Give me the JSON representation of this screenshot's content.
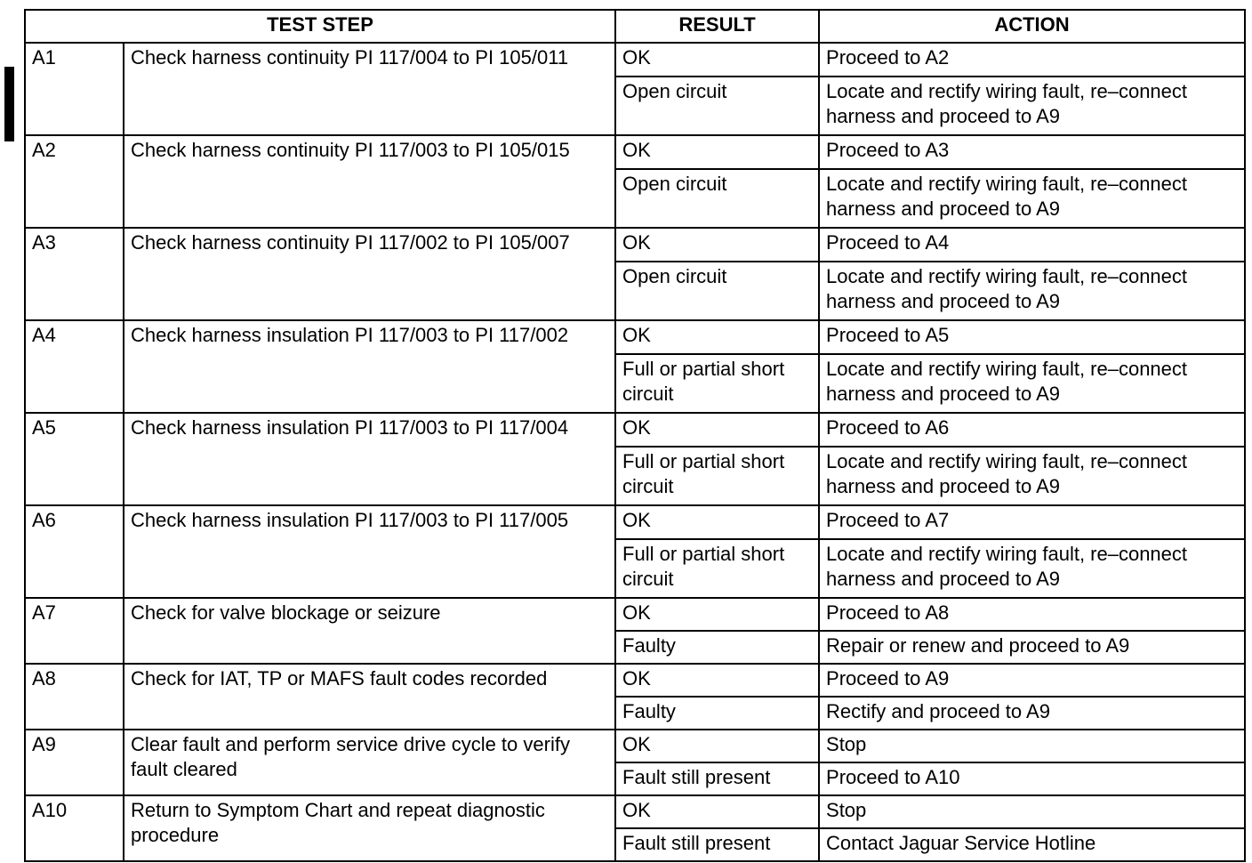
{
  "headers": {
    "test_step": "TEST STEP",
    "result": "RESULT",
    "action": "ACTION"
  },
  "steps": [
    {
      "id": "A1",
      "step": "Check harness continuity PI 117/004 to PI 105/011",
      "outcomes": [
        {
          "result": "OK",
          "action": "Proceed to A2"
        },
        {
          "result": "Open circuit",
          "action": "Locate and rectify wiring fault, re–connect harness and proceed to A9"
        }
      ]
    },
    {
      "id": "A2",
      "step": "Check harness continuity PI 117/003 to PI 105/015",
      "outcomes": [
        {
          "result": "OK",
          "action": "Proceed to A3"
        },
        {
          "result": "Open circuit",
          "action": "Locate and rectify wiring fault, re–connect harness and proceed to A9"
        }
      ]
    },
    {
      "id": "A3",
      "step": "Check harness continuity PI 117/002 to PI 105/007",
      "outcomes": [
        {
          "result": "OK",
          "action": "Proceed to A4"
        },
        {
          "result": "Open circuit",
          "action": "Locate and rectify wiring fault, re–connect harness and proceed to A9"
        }
      ]
    },
    {
      "id": "A4",
      "step": "Check harness insulation PI 117/003 to PI 117/002",
      "outcomes": [
        {
          "result": "OK",
          "action": "Proceed to A5"
        },
        {
          "result": "Full or partial short circuit",
          "action": "Locate and rectify wiring fault, re–connect harness and proceed to A9"
        }
      ]
    },
    {
      "id": "A5",
      "step": "Check harness insulation PI 117/003 to PI 117/004",
      "outcomes": [
        {
          "result": "OK",
          "action": "Proceed to A6"
        },
        {
          "result": "Full or partial short circuit",
          "action": "Locate and rectify wiring fault, re–connect harness and proceed to A9"
        }
      ]
    },
    {
      "id": "A6",
      "step": "Check harness insulation PI 117/003 to PI 117/005",
      "outcomes": [
        {
          "result": "OK",
          "action": "Proceed to A7"
        },
        {
          "result": "Full or partial short circuit",
          "action": "Locate and rectify wiring fault, re–connect harness and proceed to A9"
        }
      ]
    },
    {
      "id": "A7",
      "step": "Check for valve blockage or seizure",
      "outcomes": [
        {
          "result": "OK",
          "action": "Proceed to A8"
        },
        {
          "result": "Faulty",
          "action": "Repair or renew and proceed to A9"
        }
      ]
    },
    {
      "id": "A8",
      "step": "Check for IAT, TP or MAFS fault codes recorded",
      "outcomes": [
        {
          "result": "OK",
          "action": "Proceed to A9"
        },
        {
          "result": "Faulty",
          "action": "Rectify and proceed to A9"
        }
      ]
    },
    {
      "id": "A9",
      "step": "Clear fault and perform service drive cycle to verify fault cleared",
      "outcomes": [
        {
          "result": "OK",
          "action": "Stop"
        },
        {
          "result": "Fault still present",
          "action": "Proceed to A10"
        }
      ]
    },
    {
      "id": "A10",
      "step": "Return to Symptom Chart and repeat diagnostic procedure",
      "outcomes": [
        {
          "result": "OK",
          "action": "Stop"
        },
        {
          "result": "Fault still present",
          "action": "Contact Jaguar Service Hotline"
        }
      ]
    }
  ]
}
